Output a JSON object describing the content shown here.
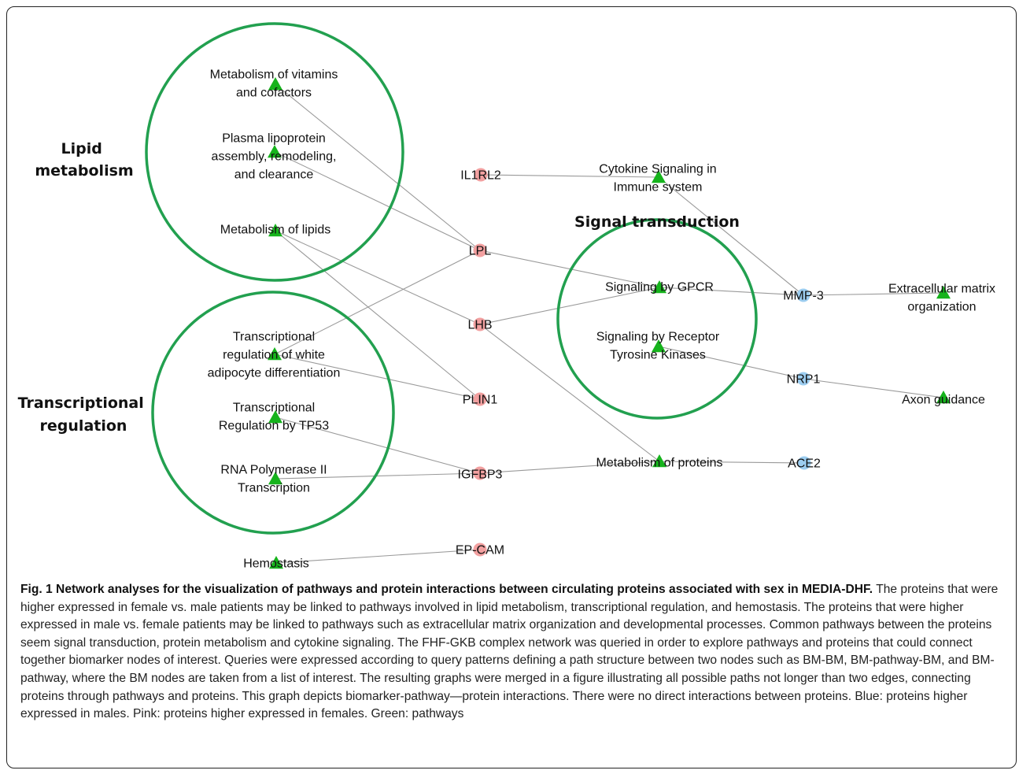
{
  "colors": {
    "pathway": "#16b31c",
    "protein_female": "#f2a0a0",
    "protein_male": "#9ccdf0",
    "group_circle": "#22a04f",
    "edge": "#9a9a9a"
  },
  "groups": {
    "lipid": [
      "Lipid",
      "metabolism"
    ],
    "transcriptional": [
      "Transcriptional",
      "regulation"
    ],
    "signal": [
      "Signal transduction"
    ]
  },
  "nodes": {
    "vitamins": {
      "lines": [
        "Metabolism of vitamins",
        "and cofactors"
      ],
      "kind": "pathway"
    },
    "lipoprotein": {
      "lines": [
        "Plasma lipoprotein",
        "assembly, remodeling,",
        "and clearance"
      ],
      "kind": "pathway"
    },
    "lipids": {
      "lines": [
        "Metabolism of lipids"
      ],
      "kind": "pathway"
    },
    "white_adipocyte": {
      "lines": [
        "Transcriptional",
        "regulation of white",
        "adipocyte differentiation"
      ],
      "kind": "pathway"
    },
    "tp53": {
      "lines": [
        "Transcriptional",
        "Regulation by TP53"
      ],
      "kind": "pathway"
    },
    "rnapol": {
      "lines": [
        "RNA Polymerase II",
        "Transcription"
      ],
      "kind": "pathway"
    },
    "hemostasis": {
      "lines": [
        "Hemostasis"
      ],
      "kind": "pathway"
    },
    "cytokine": {
      "lines": [
        "Cytokine Signaling in",
        "Immune system"
      ],
      "kind": "pathway"
    },
    "gpcr": {
      "lines": [
        "Signaling by GPCR"
      ],
      "kind": "pathway"
    },
    "rtk": {
      "lines": [
        "Signaling by Receptor",
        "Tyrosine Kinases"
      ],
      "kind": "pathway"
    },
    "proteins": {
      "lines": [
        "Metabolism of proteins"
      ],
      "kind": "pathway"
    },
    "ecm": {
      "lines": [
        "Extracellular matrix",
        "organization"
      ],
      "kind": "pathway"
    },
    "axon": {
      "lines": [
        "Axon guidance"
      ],
      "kind": "pathway"
    },
    "il1rl2": {
      "lines": [
        "IL1RL2"
      ],
      "kind": "protein-female"
    },
    "lpl": {
      "lines": [
        "LPL"
      ],
      "kind": "protein-female"
    },
    "lhb": {
      "lines": [
        "LHB"
      ],
      "kind": "protein-female"
    },
    "plin1": {
      "lines": [
        "PLIN1"
      ],
      "kind": "protein-female"
    },
    "igfbp3": {
      "lines": [
        "IGFBP3"
      ],
      "kind": "protein-female"
    },
    "epcam": {
      "lines": [
        "EP-CAM"
      ],
      "kind": "protein-female"
    },
    "mmp3": {
      "lines": [
        "MMP-3"
      ],
      "kind": "protein-male"
    },
    "nrp1": {
      "lines": [
        "NRP1"
      ],
      "kind": "protein-male"
    },
    "ace2": {
      "lines": [
        "ACE2"
      ],
      "kind": "protein-male"
    }
  },
  "edges": [
    [
      "vitamins",
      "lpl"
    ],
    [
      "lipoprotein",
      "lpl"
    ],
    [
      "lipids",
      "lhb"
    ],
    [
      "lipids",
      "plin1"
    ],
    [
      "white_adipocyte",
      "lpl"
    ],
    [
      "white_adipocyte",
      "plin1"
    ],
    [
      "tp53",
      "igfbp3"
    ],
    [
      "rnapol",
      "igfbp3"
    ],
    [
      "il1rl2",
      "cytokine"
    ],
    [
      "cytokine",
      "mmp3"
    ],
    [
      "lpl",
      "gpcr"
    ],
    [
      "lhb",
      "gpcr"
    ],
    [
      "gpcr",
      "mmp3"
    ],
    [
      "mmp3",
      "ecm"
    ],
    [
      "rtk",
      "nrp1"
    ],
    [
      "nrp1",
      "axon"
    ],
    [
      "lhb",
      "proteins"
    ],
    [
      "igfbp3",
      "proteins"
    ],
    [
      "proteins",
      "ace2"
    ],
    [
      "hemostasis",
      "epcam"
    ]
  ],
  "caption": {
    "title": "Fig. 1 Network analyses for the visualization of pathways and protein interactions between circulating proteins associated with sex in MEDIA-DHF.",
    "body": "The proteins that were higher expressed in female vs. male patients may be linked to pathways involved in lipid metabolism, transcriptional regulation, and hemostasis. The proteins that were higher expressed in male vs. female patients may be linked to pathways such as extracellular matrix organization and developmental processes. Common pathways between the proteins seem signal transduction, protein metabolism and cytokine signaling. The FHF-GKB complex network was queried in order to explore pathways and proteins that could connect together biomarker nodes of interest. Queries were expressed according to query patterns defining a path structure between two nodes such as BM-BM, BM-pathway-BM, and BM-pathway, where the BM nodes are taken from a list of interest. The resulting graphs were merged in a figure illustrating all possible paths not longer than two edges, connecting proteins through pathways and proteins. This graph depicts biomarker-pathway—protein interactions. There were no direct interactions between proteins. Blue: proteins higher expressed in males. Pink: proteins higher expressed in females. Green: pathways"
  }
}
